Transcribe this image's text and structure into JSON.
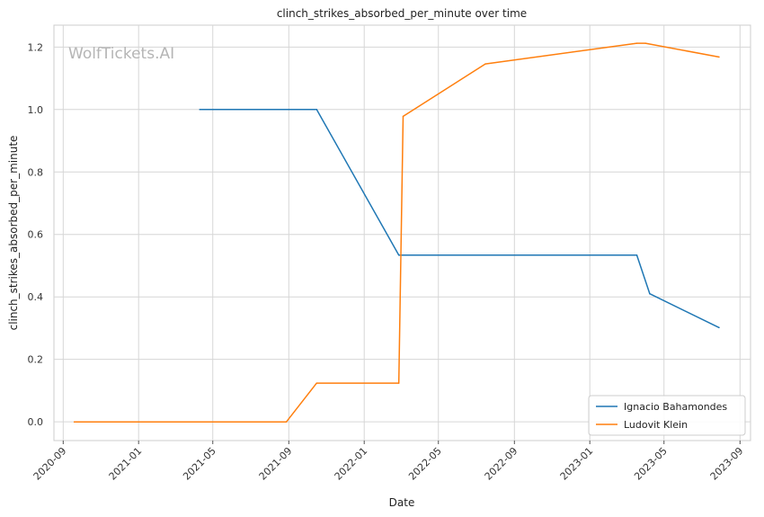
{
  "watermark": "WolfTickets.AI",
  "chart_data": {
    "type": "line",
    "title": "clinch_strikes_absorbed_per_minute over time",
    "xlabel": "Date",
    "ylabel": "clinch_strikes_absorbed_per_minute",
    "xlim": [
      "2020-08-17",
      "2023-09-18"
    ],
    "ylim": [
      -0.06,
      1.27
    ],
    "x_ticks": [
      "2020-09",
      "2021-01",
      "2021-05",
      "2021-09",
      "2022-01",
      "2022-05",
      "2022-09",
      "2023-01",
      "2023-05",
      "2023-09"
    ],
    "y_ticks": [
      0.0,
      0.2,
      0.4,
      0.6,
      0.8,
      1.0,
      1.2
    ],
    "y_tick_labels": [
      "0.0",
      "0.2",
      "0.4",
      "0.6",
      "0.8",
      "1.0",
      "1.2"
    ],
    "grid": true,
    "legend_position": "bottom-right",
    "series": [
      {
        "name": "Ignacio Bahamondes",
        "color": "#1f77b4",
        "points": [
          {
            "x": "2021-04-10",
            "y": 1.0
          },
          {
            "x": "2021-10-16",
            "y": 1.0
          },
          {
            "x": "2022-02-26",
            "y": 0.534
          },
          {
            "x": "2023-03-18",
            "y": 0.534
          },
          {
            "x": "2023-04-08",
            "y": 0.41
          },
          {
            "x": "2023-07-29",
            "y": 0.302
          }
        ]
      },
      {
        "name": "Ludovit Klein",
        "color": "#ff7f0e",
        "points": [
          {
            "x": "2020-09-19",
            "y": 0.0
          },
          {
            "x": "2021-08-28",
            "y": 0.0
          },
          {
            "x": "2021-10-16",
            "y": 0.124
          },
          {
            "x": "2022-02-26",
            "y": 0.124
          },
          {
            "x": "2022-03-05",
            "y": 0.978
          },
          {
            "x": "2022-07-16",
            "y": 1.146
          },
          {
            "x": "2023-03-18",
            "y": 1.212
          },
          {
            "x": "2023-04-01",
            "y": 1.212
          },
          {
            "x": "2023-07-29",
            "y": 1.168
          }
        ]
      }
    ]
  }
}
